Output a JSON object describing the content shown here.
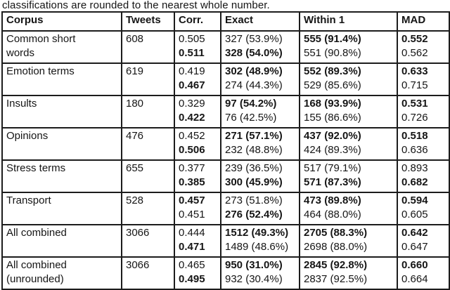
{
  "caption": "classifications are rounded to the nearest whole number.",
  "table": {
    "columns": [
      "Corpus",
      "Tweets",
      "Corr.",
      "Exact",
      "Within 1",
      "MAD"
    ],
    "rows": [
      {
        "corpus": [
          "Common short",
          "words"
        ],
        "tweets": "608",
        "corr": [
          {
            "text": "0.505",
            "bold": false
          },
          {
            "text": "0.511",
            "bold": true
          }
        ],
        "exact": [
          {
            "text": "327 (53.9%)",
            "bold": false
          },
          {
            "text": "328 (54.0%)",
            "bold": true
          }
        ],
        "within1": [
          {
            "text": "555 (91.4%)",
            "bold": true
          },
          {
            "text": "551 (90.8%)",
            "bold": false
          }
        ],
        "mad": [
          {
            "text": "0.552",
            "bold": true
          },
          {
            "text": "0.562",
            "bold": false
          }
        ]
      },
      {
        "corpus": [
          "Emotion terms"
        ],
        "tweets": "619",
        "corr": [
          {
            "text": "0.419",
            "bold": false
          },
          {
            "text": "0.467",
            "bold": true
          }
        ],
        "exact": [
          {
            "text": "302 (48.9%)",
            "bold": true
          },
          {
            "text": "274 (44.3%)",
            "bold": false
          }
        ],
        "within1": [
          {
            "text": "552 (89.3%)",
            "bold": true
          },
          {
            "text": "529 (85.6%)",
            "bold": false
          }
        ],
        "mad": [
          {
            "text": "0.633",
            "bold": true
          },
          {
            "text": "0.715",
            "bold": false
          }
        ]
      },
      {
        "corpus": [
          "Insults"
        ],
        "tweets": "180",
        "corr": [
          {
            "text": "0.329",
            "bold": false
          },
          {
            "text": "0.422",
            "bold": true
          }
        ],
        "exact": [
          {
            "text": "97 (54.2%)",
            "bold": true
          },
          {
            "text": "76 (42.5%)",
            "bold": false
          }
        ],
        "within1": [
          {
            "text": "168 (93.9%)",
            "bold": true
          },
          {
            "text": "155 (86.6%)",
            "bold": false
          }
        ],
        "mad": [
          {
            "text": "0.531",
            "bold": true
          },
          {
            "text": "0.726",
            "bold": false
          }
        ]
      },
      {
        "corpus": [
          "Opinions"
        ],
        "tweets": "476",
        "corr": [
          {
            "text": "0.452",
            "bold": false
          },
          {
            "text": "0.506",
            "bold": true
          }
        ],
        "exact": [
          {
            "text": "271 (57.1%)",
            "bold": true
          },
          {
            "text": "232 (48.8%)",
            "bold": false
          }
        ],
        "within1": [
          {
            "text": "437 (92.0%)",
            "bold": true
          },
          {
            "text": "424 (89.3%)",
            "bold": false
          }
        ],
        "mad": [
          {
            "text": "0.518",
            "bold": true
          },
          {
            "text": "0.636",
            "bold": false
          }
        ]
      },
      {
        "corpus": [
          "Stress terms"
        ],
        "tweets": "655",
        "corr": [
          {
            "text": "0.377",
            "bold": false
          },
          {
            "text": "0.385",
            "bold": true
          }
        ],
        "exact": [
          {
            "text": "239 (36.5%)",
            "bold": false
          },
          {
            "text": "300 (45.9%)",
            "bold": true
          }
        ],
        "within1": [
          {
            "text": "517 (79.1%)",
            "bold": false
          },
          {
            "text": "571 (87.3%)",
            "bold": true
          }
        ],
        "mad": [
          {
            "text": "0.893",
            "bold": false
          },
          {
            "text": "0.682",
            "bold": true
          }
        ]
      },
      {
        "corpus": [
          "Transport"
        ],
        "tweets": "528",
        "corr": [
          {
            "text": "0.457",
            "bold": true
          },
          {
            "text": "0.451",
            "bold": false
          }
        ],
        "exact": [
          {
            "text": "273 (51.8%)",
            "bold": false
          },
          {
            "text": "276 (52.4%)",
            "bold": true
          }
        ],
        "within1": [
          {
            "text": "473 (89.8%)",
            "bold": true
          },
          {
            "text": "464 (88.0%)",
            "bold": false
          }
        ],
        "mad": [
          {
            "text": "0.594",
            "bold": true
          },
          {
            "text": "0.605",
            "bold": false
          }
        ]
      },
      {
        "corpus": [
          "All combined"
        ],
        "tweets": "3066",
        "corr": [
          {
            "text": "0.444",
            "bold": false
          },
          {
            "text": "0.471",
            "bold": true
          }
        ],
        "exact": [
          {
            "text": "1512 (49.3%)",
            "bold": true
          },
          {
            "text": "1489 (48.6%)",
            "bold": false
          }
        ],
        "within1": [
          {
            "text": "2705 (88.3%)",
            "bold": true
          },
          {
            "text": "2698 (88.0%)",
            "bold": false
          }
        ],
        "mad": [
          {
            "text": "0.642",
            "bold": true
          },
          {
            "text": "0.647",
            "bold": false
          }
        ]
      },
      {
        "corpus": [
          "All combined",
          "(unrounded)"
        ],
        "tweets": "3066",
        "corr": [
          {
            "text": "0.465",
            "bold": false
          },
          {
            "text": "0.495",
            "bold": true
          }
        ],
        "exact": [
          {
            "text": "950 (31.0%)",
            "bold": true
          },
          {
            "text": "932 (30.4%)",
            "bold": false
          }
        ],
        "within1": [
          {
            "text": "2845 (92.8%)",
            "bold": true
          },
          {
            "text": "2837 (92.5%)",
            "bold": false
          }
        ],
        "mad": [
          {
            "text": "0.660",
            "bold": true
          },
          {
            "text": "0.664",
            "bold": false
          }
        ]
      }
    ]
  }
}
